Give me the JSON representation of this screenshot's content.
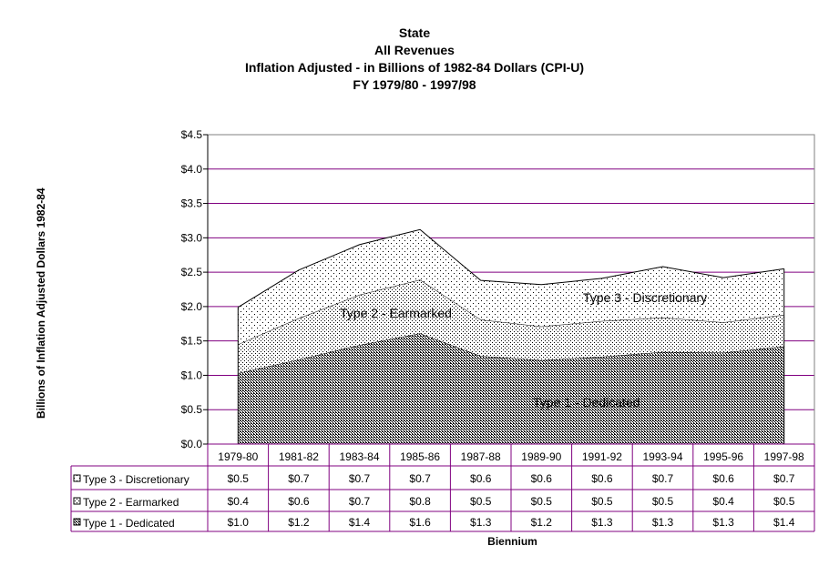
{
  "chart_data": {
    "type": "area",
    "stacked": true,
    "title_lines": [
      "State",
      "All Revenues",
      "Inflation Adjusted - in Billions of 1982-84 Dollars (CPI-U)",
      "FY 1979/80 - 1997/98"
    ],
    "ylabel": "Billions of Inflation Adjusted Dollars 1982-84",
    "xlabel": "Biennium",
    "ylim": [
      0,
      4.5
    ],
    "yticks": [
      0,
      0.5,
      1.0,
      1.5,
      2.0,
      2.5,
      3.0,
      3.5,
      4.0,
      4.5
    ],
    "ytick_labels": [
      "$0.0",
      "$0.5",
      "$1.0",
      "$1.5",
      "$2.0",
      "$2.5",
      "$3.0",
      "$3.5",
      "$4.0",
      "$4.5"
    ],
    "grid": true,
    "categories": [
      "1979-80",
      "1981-82",
      "1983-84",
      "1985-86",
      "1987-88",
      "1989-90",
      "1991-92",
      "1993-94",
      "1995-96",
      "1997-98"
    ],
    "series": [
      {
        "name": "Type 1 - Dedicated",
        "area_label": "Type 1 - Dedicated",
        "table_label": "Type 1 - Dedicated",
        "values": [
          1.03,
          1.23,
          1.44,
          1.61,
          1.28,
          1.22,
          1.27,
          1.34,
          1.33,
          1.42
        ],
        "display": [
          "$1.0",
          "$1.2",
          "$1.4",
          "$1.6",
          "$1.3",
          "$1.2",
          "$1.3",
          "$1.3",
          "$1.3",
          "$1.4"
        ],
        "fill": "#c8c8c8"
      },
      {
        "name": "Type 2 - Earmarked",
        "area_label": "Type 2  - Earmarked",
        "table_label": "Type 2  - Earmarked",
        "values": [
          0.42,
          0.6,
          0.73,
          0.78,
          0.53,
          0.49,
          0.52,
          0.5,
          0.44,
          0.46
        ],
        "display": [
          "$0.4",
          "$0.6",
          "$0.7",
          "$0.8",
          "$0.5",
          "$0.5",
          "$0.5",
          "$0.5",
          "$0.4",
          "$0.5"
        ],
        "fill": "#e2e2e2"
      },
      {
        "name": "Type 3 - Discretionary",
        "area_label": "Type 3 - Discretionary",
        "table_label": "Type 3 - Discretionary",
        "values": [
          0.54,
          0.7,
          0.73,
          0.73,
          0.57,
          0.61,
          0.62,
          0.74,
          0.65,
          0.67
        ],
        "display": [
          "$0.5",
          "$0.7",
          "$0.7",
          "$0.7",
          "$0.6",
          "$0.6",
          "$0.6",
          "$0.7",
          "$0.6",
          "$0.7"
        ],
        "fill": "#f3f3f3"
      }
    ],
    "colors": {
      "grid": "#800080",
      "frame": "#808080",
      "line": "#000000"
    }
  }
}
